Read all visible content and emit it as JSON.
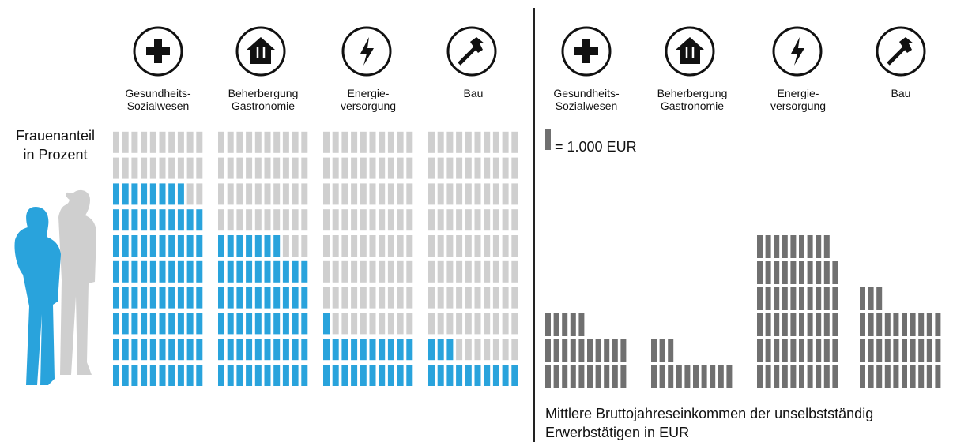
{
  "chart_data": [
    {
      "type": "waffle",
      "title": "Frauenanteil\nin Prozent",
      "color": "#29a3dc",
      "categories": [
        "Gesundheits-\nSozialwesen",
        "Beherbergung\nGastronomie",
        "Energie-\nversorgung",
        "Bau"
      ],
      "values": [
        78,
        57,
        21,
        13
      ]
    },
    {
      "type": "pictogram",
      "title": "Mittlere Bruttojahreseinkommen der unselbstständig Erwerbstätigen in EUR",
      "color": "#707070",
      "categories": [
        "Gesundheits-\nSozialwesen",
        "Beherbergung\nGastronomie",
        "Energie-\nversorgung",
        "Bau"
      ],
      "unit": {
        "value": 1000,
        "label": "= 1.000 EUR"
      },
      "values": [
        25000,
        13000,
        59000,
        33000
      ]
    }
  ]
}
